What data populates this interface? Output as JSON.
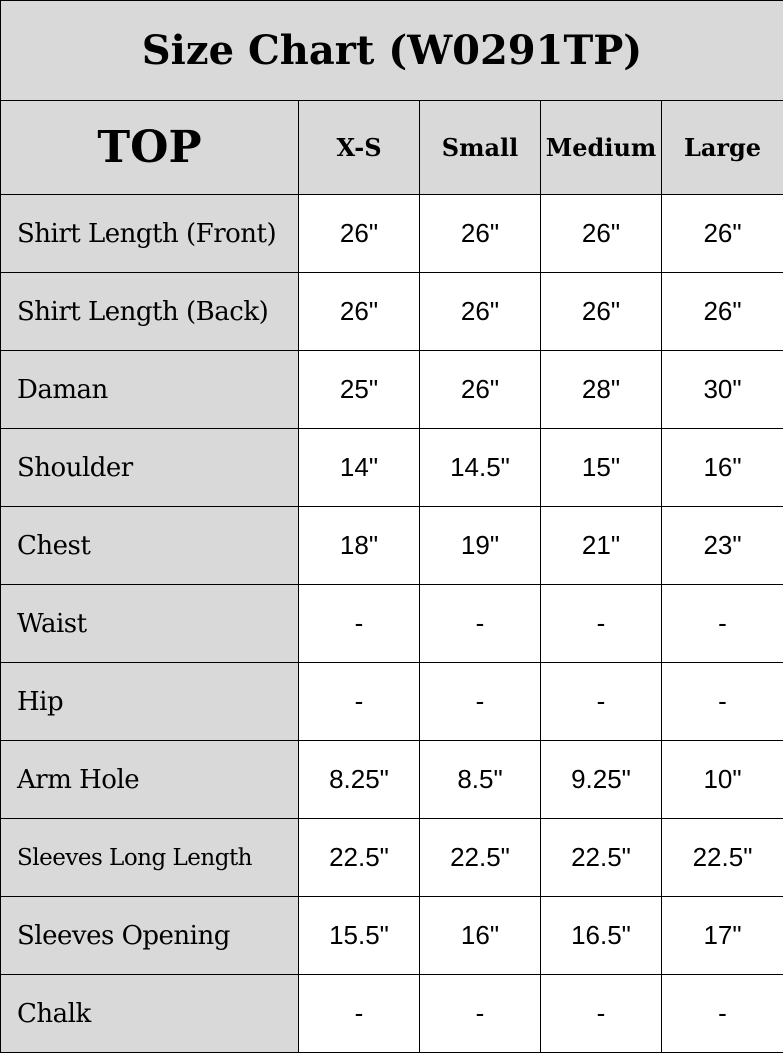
{
  "title": "Size Chart (W0291TP)",
  "header": {
    "label": "TOP",
    "sizes": [
      "X-S",
      "Small",
      "Medium",
      "Large"
    ]
  },
  "rows": [
    {
      "label": "Shirt Length (Front)",
      "values": [
        "26\"",
        "26\"",
        "26\"",
        "26\""
      ]
    },
    {
      "label": "Shirt Length (Back)",
      "values": [
        "26\"",
        "26\"",
        "26\"",
        "26\""
      ]
    },
    {
      "label": "Daman",
      "values": [
        "25\"",
        "26\"",
        "28\"",
        "30\""
      ]
    },
    {
      "label": "Shoulder",
      "values": [
        "14\"",
        "14.5\"",
        "15\"",
        "16\""
      ]
    },
    {
      "label": "Chest",
      "values": [
        "18\"",
        "19\"",
        "21\"",
        "23\""
      ]
    },
    {
      "label": "Waist",
      "values": [
        "-",
        "-",
        "-",
        "-"
      ]
    },
    {
      "label": "Hip",
      "values": [
        "-",
        "-",
        "-",
        "-"
      ]
    },
    {
      "label": "Arm Hole",
      "values": [
        "8.25\"",
        "8.5\"",
        "9.25\"",
        "10\""
      ]
    },
    {
      "label": "Sleeves Long Length",
      "values": [
        "22.5\"",
        "22.5\"",
        "22.5\"",
        "22.5\""
      ]
    },
    {
      "label": "Sleeves Opening",
      "values": [
        "15.5\"",
        "16\"",
        "16.5\"",
        "17\""
      ]
    },
    {
      "label": "Chalk",
      "values": [
        "-",
        "-",
        "-",
        "-"
      ]
    }
  ],
  "colors": {
    "header_bg": "#d9d9d9",
    "border": "#000000"
  }
}
